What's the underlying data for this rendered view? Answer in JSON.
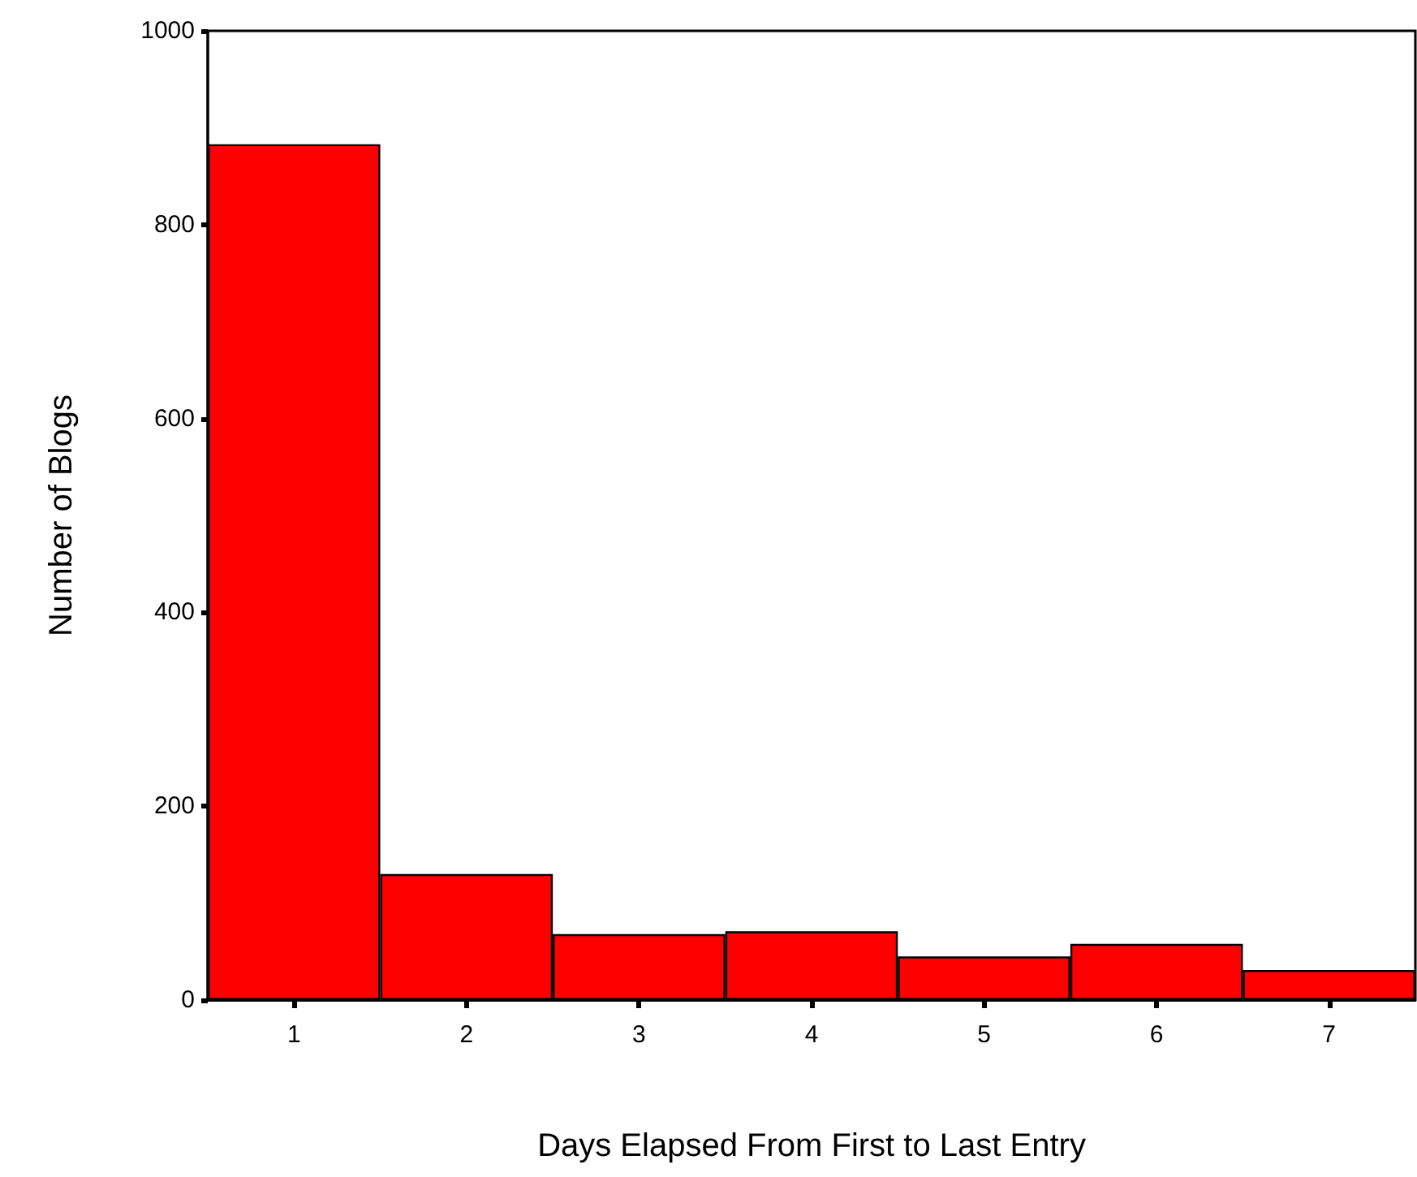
{
  "chart_data": {
    "type": "bar",
    "xlabel": "Days Elapsed From First to Last Entry",
    "ylabel": "Number of Blogs",
    "categories": [
      "1",
      "2",
      "3",
      "4",
      "5",
      "6",
      "7"
    ],
    "values": [
      883,
      130,
      68,
      71,
      45,
      58,
      31
    ],
    "color": "#ff0000",
    "ylim": [
      0,
      1000
    ],
    "yticks": [
      0,
      200,
      400,
      600,
      800,
      1000
    ],
    "grid": false
  }
}
